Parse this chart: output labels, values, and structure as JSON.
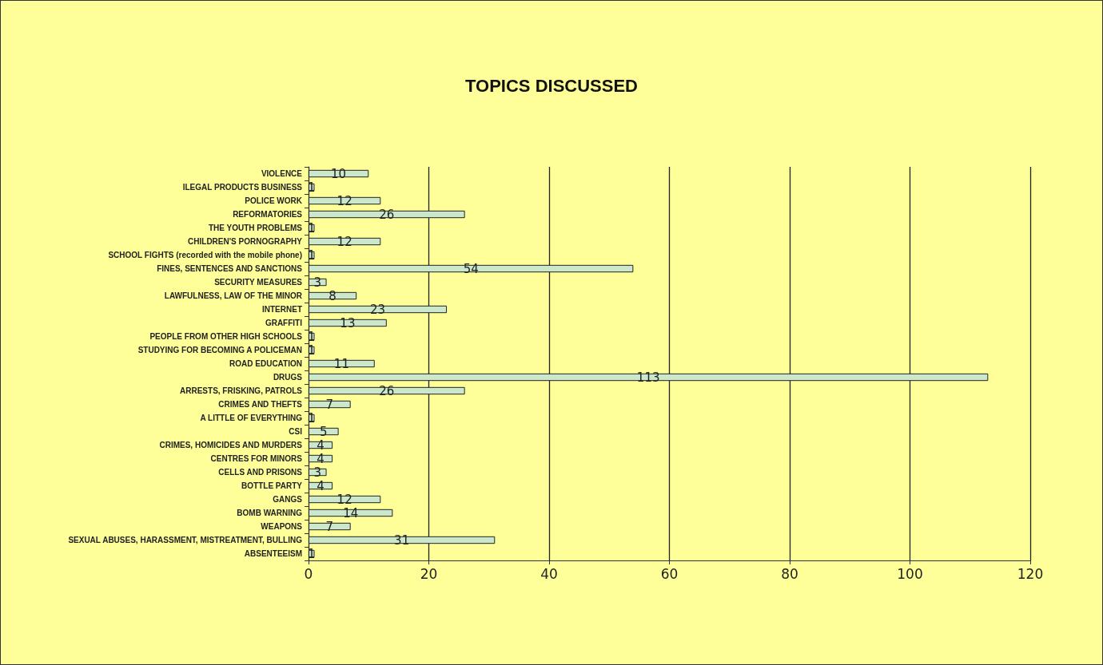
{
  "chart_data": {
    "type": "bar",
    "orientation": "horizontal",
    "title": "TOPICS DISCUSSED",
    "categories": [
      "VIOLENCE",
      "ILEGAL PRODUCTS BUSINESS",
      "POLICE WORK",
      "REFORMATORIES",
      "THE YOUTH PROBLEMS",
      "CHILDREN'S PORNOGRAPHY",
      "SCHOOL FIGHTS (recorded with the mobile phone)",
      "FINES, SENTENCES AND SANCTIONS",
      "SECURITY MEASURES",
      "LAWFULNESS, LAW OF THE MINOR",
      "INTERNET",
      "GRAFFITI",
      "PEOPLE FROM OTHER HIGH SCHOOLS",
      "STUDYING FOR BECOMING A POLICEMAN",
      "ROAD EDUCATION",
      "DRUGS",
      "ARRESTS, FRISKING, PATROLS",
      "CRIMES AND THEFTS",
      "A LITTLE OF EVERYTHING",
      "CSI",
      "CRIMES, HOMICIDES AND MURDERS",
      "CENTRES FOR MINORS",
      "CELLS AND PRISONS",
      "BOTTLE PARTY",
      "GANGS",
      "BOMB WARNING",
      "WEAPONS",
      "SEXUAL ABUSES, HARASSMENT, MISTREATMENT, BULLING",
      "ABSENTEEISM"
    ],
    "values": [
      10,
      1,
      12,
      26,
      1,
      12,
      1,
      54,
      3,
      8,
      23,
      13,
      1,
      1,
      11,
      113,
      26,
      7,
      1,
      5,
      4,
      4,
      3,
      4,
      12,
      14,
      7,
      31,
      1
    ],
    "color": "#cce8cc",
    "xlim": [
      0,
      120
    ],
    "xticks": [
      0,
      20,
      40,
      60,
      80,
      100,
      120
    ],
    "grid": "x",
    "data_labels": true
  }
}
